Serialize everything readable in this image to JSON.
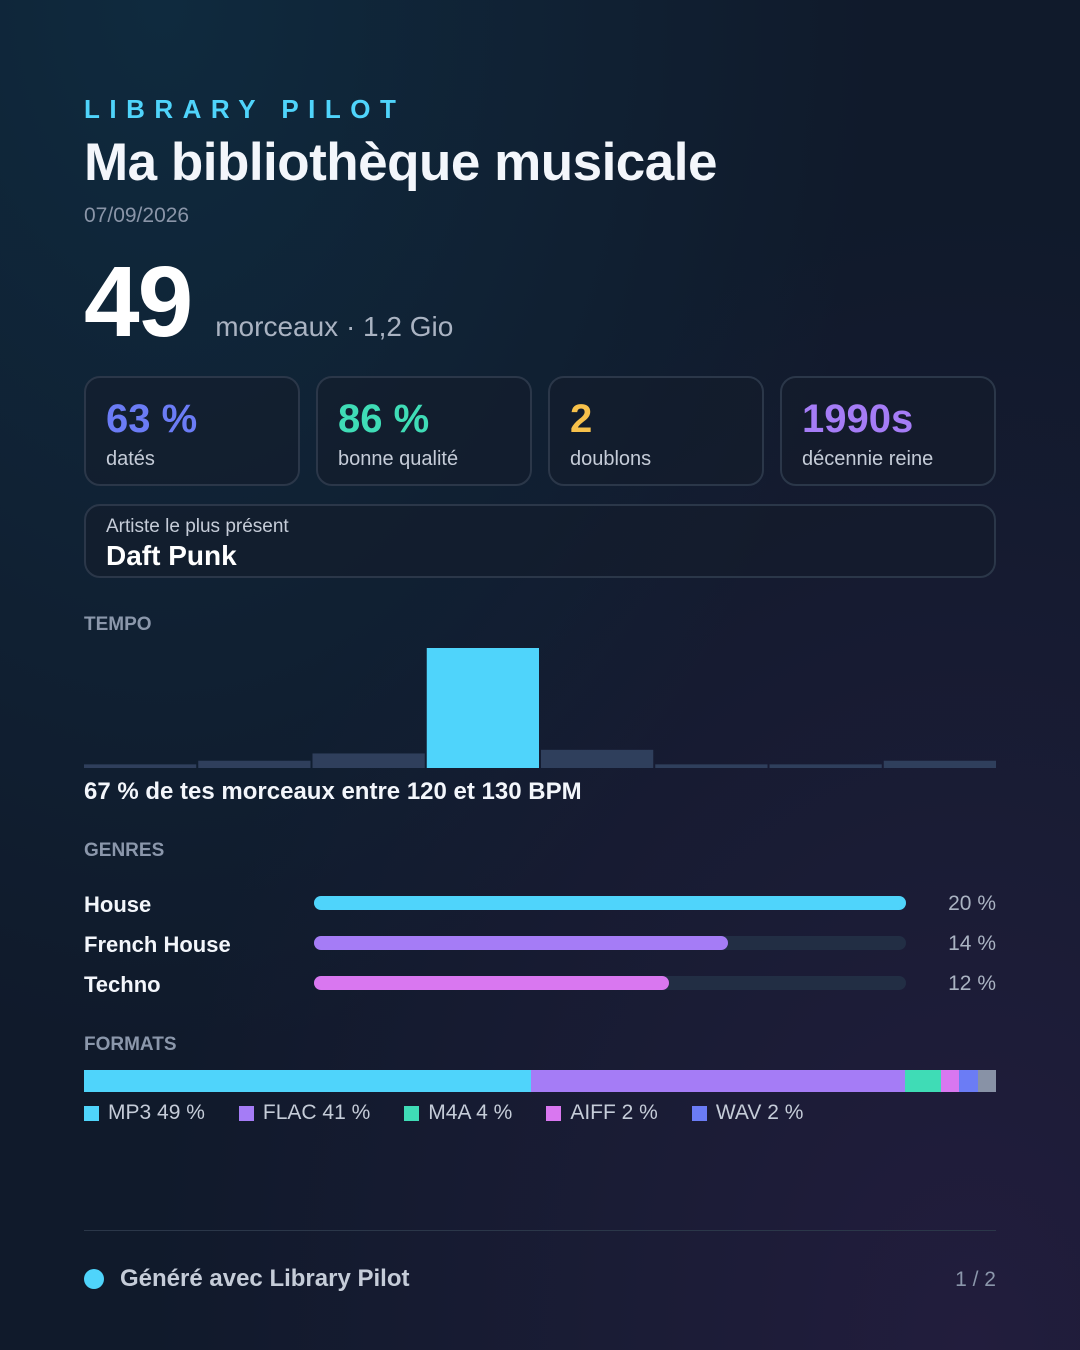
{
  "header": {
    "brand": "LIBRARY PILOT",
    "title": "Ma bibliothèque musicale",
    "date": "07/09/2026"
  },
  "hero": {
    "count": "49",
    "summary": "morceaux · 1,2 Gio"
  },
  "stats": [
    {
      "value": "63 %",
      "label": "datés",
      "color": "#6b7cf5"
    },
    {
      "value": "86 %",
      "label": "bonne qualité",
      "color": "#3fdcb6"
    },
    {
      "value": "2",
      "label": "doublons",
      "color": "#f7c14b"
    },
    {
      "value": "1990s",
      "label": "décennie reine",
      "color": "#a57cf6"
    }
  ],
  "artist": {
    "label": "Artiste le plus présent",
    "name": "Daft Punk"
  },
  "tempo": {
    "section_label": "TEMPO",
    "caption": "67 % de tes morceaux entre 120 et 130 BPM"
  },
  "genres": {
    "section_label": "GENRES",
    "items": [
      {
        "name": "House",
        "pct_label": "20 %",
        "value": 20,
        "color": "#4fd4fb"
      },
      {
        "name": "French House",
        "pct_label": "14 %",
        "value": 14,
        "color": "#a57cf6"
      },
      {
        "name": "Techno",
        "pct_label": "12 %",
        "value": 12,
        "color": "#d977f0"
      }
    ],
    "max_value": 20
  },
  "formats": {
    "section_label": "FORMATS",
    "items": [
      {
        "label": "MP3 49 %",
        "value": 49,
        "color": "#4fd4fb"
      },
      {
        "label": "FLAC 41 %",
        "value": 41,
        "color": "#a57cf6"
      },
      {
        "label": "M4A 4 %",
        "value": 4,
        "color": "#3fdcb6"
      },
      {
        "label": "AIFF 2 %",
        "value": 2,
        "color": "#d977f0"
      },
      {
        "label": "WAV 2 %",
        "value": 2,
        "color": "#6b7cf5"
      }
    ],
    "other_value": 2,
    "other_color": "#8892a6"
  },
  "footer": {
    "text": "Généré avec Library Pilot",
    "page": "1 / 2"
  },
  "chart_data": {
    "type": "bar",
    "categories": [
      "",
      "",
      "",
      "",
      "",
      "",
      "",
      ""
    ],
    "values": [
      1,
      2,
      4,
      33,
      5,
      1,
      1,
      2
    ],
    "highlight_index": 3,
    "highlight_color": "#4fd4fb",
    "bar_color": "#2f3f5c",
    "title": "TEMPO",
    "xlabel": "",
    "ylabel": "",
    "ylim": [
      0,
      33
    ],
    "grid": false,
    "legend": "none"
  }
}
